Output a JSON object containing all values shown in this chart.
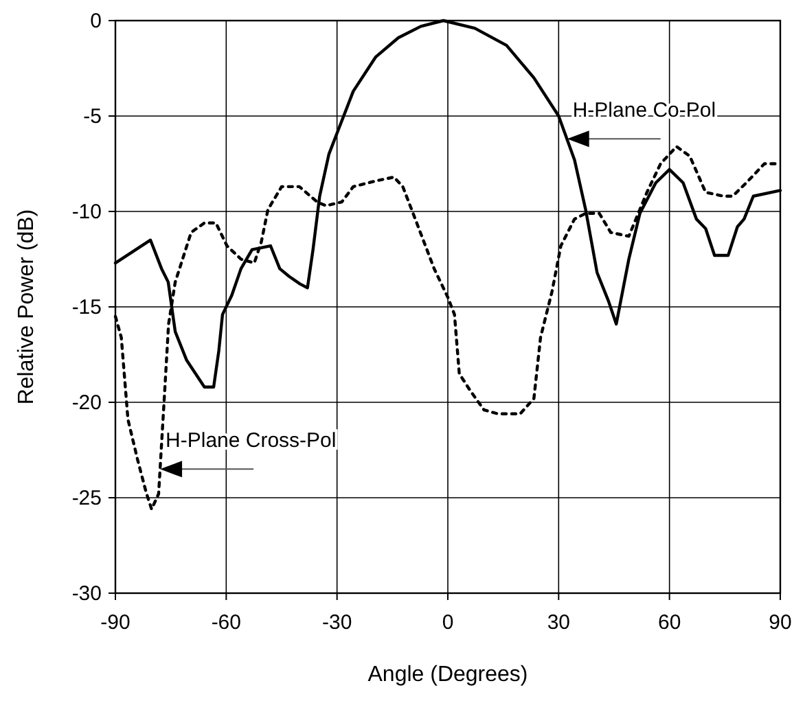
{
  "chart_data": {
    "type": "line",
    "xlabel": "Angle (Degrees)",
    "ylabel": "Relative Power (dB)",
    "xlim": [
      -90,
      90
    ],
    "xticks": [
      -90,
      -60,
      -30,
      0,
      30,
      60,
      90
    ],
    "ylim": [
      -30,
      0
    ],
    "yticks": [
      -30,
      -25,
      -20,
      -15,
      -10,
      -5,
      0
    ],
    "grid": true,
    "series": [
      {
        "color": "#000000",
        "line_style": "solid",
        "x": [
          -90,
          -80.5,
          -77.5,
          -75.7,
          -73.8,
          -70.7,
          -65.9,
          -63.4,
          -62,
          -61,
          -58.5,
          -56,
          -53,
          -48,
          -45.5,
          -43,
          -40,
          -38,
          -36.5,
          -34.7,
          -32.2,
          -30,
          -25.6,
          -19.5,
          -13.4,
          -7.3,
          -1.2,
          7.3,
          15.9,
          23.3,
          30,
          34.3,
          37.3,
          40.4,
          43.5,
          45.6,
          49,
          52,
          56.3,
          60,
          63.7,
          67.3,
          69.8,
          72.2,
          75.9,
          78.4,
          80.2,
          82.7,
          90
        ],
        "values": [
          -12.7,
          -11.5,
          -13,
          -13.7,
          -16.3,
          -17.8,
          -19.2,
          -19.2,
          -17.3,
          -15.4,
          -14.4,
          -13,
          -12,
          -11.8,
          -13,
          -13.4,
          -13.8,
          -14,
          -12,
          -9.2,
          -7,
          -5.9,
          -3.7,
          -1.9,
          -0.9,
          -0.3,
          0,
          -0.4,
          -1.3,
          -3,
          -5,
          -7.3,
          -9.9,
          -13.2,
          -14.7,
          -15.9,
          -12.5,
          -10.1,
          -8.5,
          -7.8,
          -8.5,
          -10.4,
          -10.9,
          -12.3,
          -12.3,
          -10.8,
          -10.4,
          -9.2,
          -8.9
        ]
      },
      {
        "color": "#000000",
        "line_style": "dotted",
        "x": [
          -90,
          -88.4,
          -86.6,
          -84,
          -81.7,
          -80.2,
          -78.3,
          -76.8,
          -75.6,
          -73.8,
          -69.5,
          -65.9,
          -62.8,
          -59.8,
          -56,
          -52.4,
          -50.5,
          -48.7,
          -45,
          -40.2,
          -35.4,
          -33,
          -28.7,
          -25.6,
          -19.5,
          -14.6,
          -12.2,
          -9.8,
          -3.7,
          0,
          1.8,
          3.1,
          6.1,
          9.8,
          13.5,
          19.6,
          23.3,
          25.1,
          28.2,
          30.6,
          34.3,
          37.3,
          41,
          44.1,
          49,
          53.9,
          57.6,
          61.9,
          65.5,
          69.8,
          74.7,
          77.1,
          80.8,
          85.7,
          90
        ],
        "values": [
          -15.5,
          -16.6,
          -20.9,
          -23,
          -24.7,
          -25.6,
          -24.8,
          -19.9,
          -15.9,
          -13.7,
          -11.1,
          -10.6,
          -10.6,
          -11.8,
          -12.5,
          -12.7,
          -11.6,
          -9.9,
          -8.7,
          -8.7,
          -9.5,
          -9.7,
          -9.5,
          -8.7,
          -8.4,
          -8.2,
          -8.7,
          -9.9,
          -13,
          -14.5,
          -15.4,
          -18.5,
          -19.4,
          -20.4,
          -20.6,
          -20.6,
          -19.8,
          -16.6,
          -14.2,
          -11.8,
          -10.4,
          -10.1,
          -10.1,
          -11.1,
          -11.3,
          -9,
          -7.5,
          -6.6,
          -7.1,
          -9,
          -9.2,
          -9.2,
          -8.5,
          -7.5,
          -7.5
        ]
      }
    ],
    "annotations": [
      {
        "text": "H-Plane Co-Pol",
        "x": 32.3,
        "y": -6.2
      },
      {
        "text": "H-Plane Cross-Pol",
        "x": -77.9,
        "y": -23.5
      }
    ]
  }
}
